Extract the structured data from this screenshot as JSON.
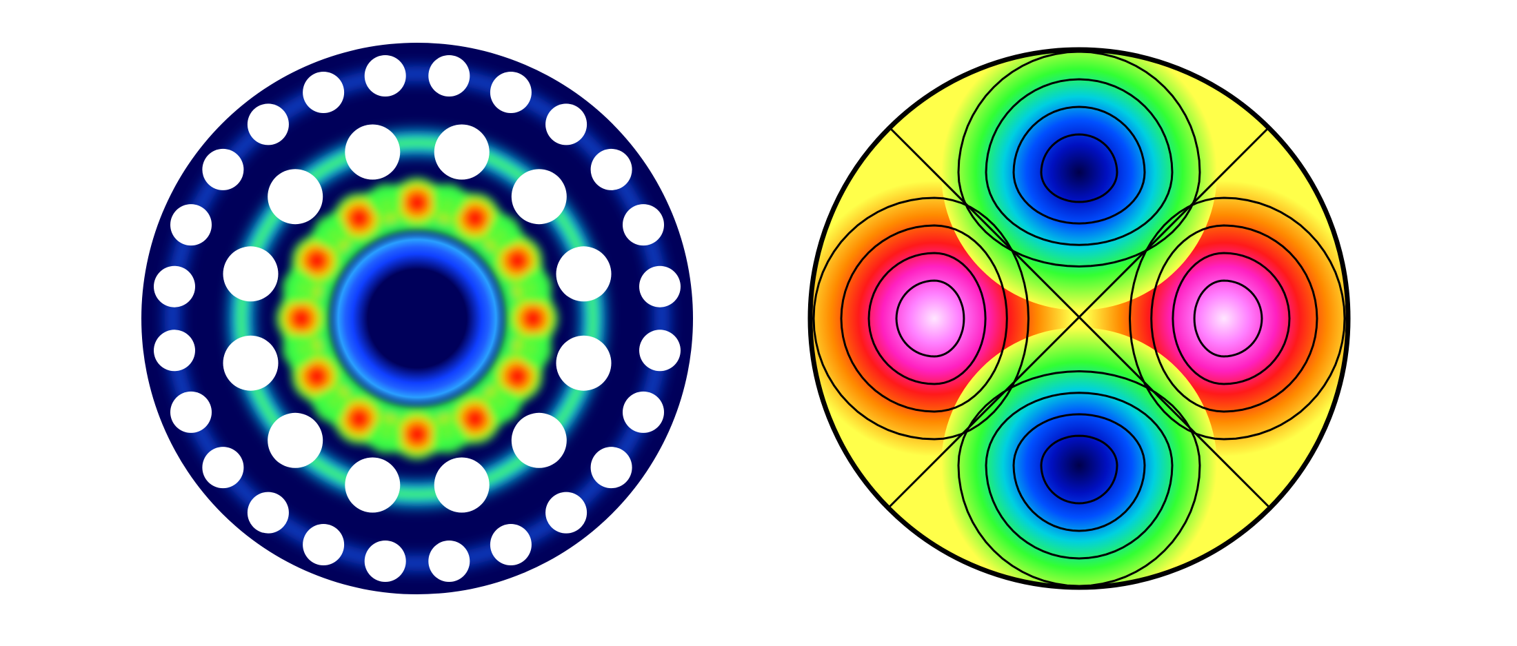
{
  "figure": {
    "background": "#ffffff",
    "panels": [
      {
        "kind": "photonic-crystal-fiber-field",
        "background_color": "#00005a",
        "hole_color": "#ffffff",
        "inner_ring_holes": 12,
        "outer_ring_holes": 24,
        "field_peaks": 12,
        "colormap": [
          "#00005a",
          "#0030ff",
          "#00d8ff",
          "#3cff3c",
          "#ffff00",
          "#ff0000"
        ]
      },
      {
        "kind": "quadrupole-mode-contours",
        "lobes": 4,
        "contour_color": "#000000",
        "colormap_positive": [
          "#ffff4a",
          "#ff9a00",
          "#ff1a1a",
          "#ff33cc",
          "#ffc8ff"
        ],
        "colormap_negative": [
          "#ffff4a",
          "#33ff33",
          "#00c8d8",
          "#0022ff",
          "#000080"
        ]
      }
    ]
  }
}
